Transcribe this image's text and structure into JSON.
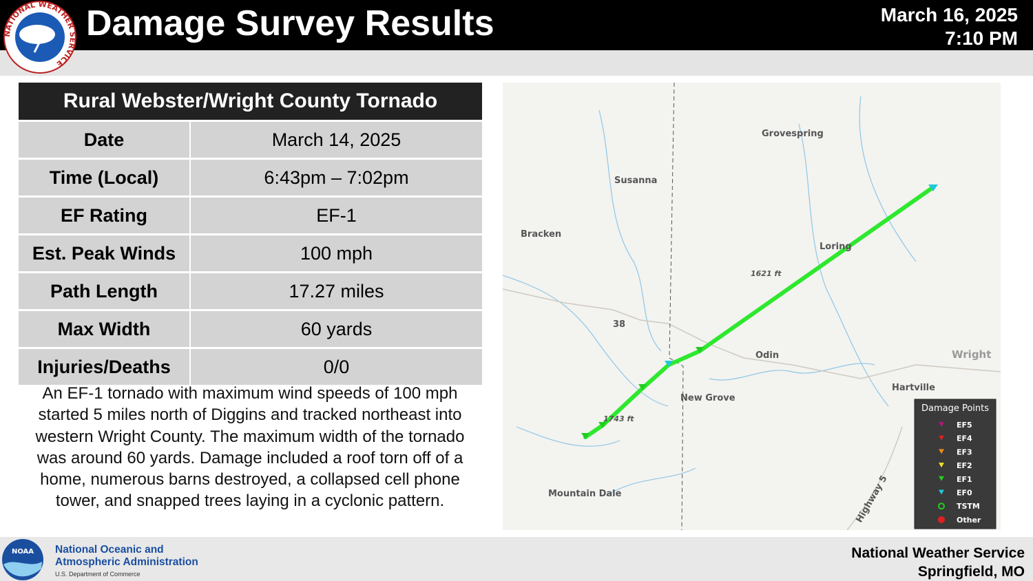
{
  "header": {
    "title": "Damage Survey Results",
    "date": "March 16, 2025",
    "time": "7:10 PM",
    "logo_text": "NATIONAL WEATHER SERVICE"
  },
  "table": {
    "title": "Rural Webster/Wright County Tornado",
    "rows": [
      [
        "Date",
        "March 14, 2025"
      ],
      [
        "Time (Local)",
        "6:43pm – 7:02pm"
      ],
      [
        "EF Rating",
        "EF-1"
      ],
      [
        "Est. Peak Winds",
        "100 mph"
      ],
      [
        "Path Length",
        "17.27 miles"
      ],
      [
        "Max Width",
        "60 yards"
      ],
      [
        "Injuries/Deaths",
        "0/0"
      ]
    ]
  },
  "description": "An EF-1 tornado with maximum wind speeds of 100 mph started 5 miles north of Diggins and tracked northeast into western Wright County. The maximum width of the tornado was around 60 yards. Damage included a roof torn off of a home, numerous barns destroyed, a collapsed cell phone tower, and snapped trees laying in a cyclonic pattern.",
  "map": {
    "places": [
      "Grovespring",
      "Susanna",
      "Bracken",
      "Loring",
      "1621 ft",
      "38",
      "Odin",
      "Wright",
      "Hartville",
      "New Grove",
      "1743 ft",
      "Mountain Dale",
      "Highway 5"
    ],
    "legend": {
      "title": "Damage Points",
      "items": [
        {
          "label": "EF5",
          "color": "#b0177a"
        },
        {
          "label": "EF4",
          "color": "#e02020"
        },
        {
          "label": "EF3",
          "color": "#f08a10"
        },
        {
          "label": "EF2",
          "color": "#f0e020"
        },
        {
          "label": "EF1",
          "color": "#22cc22"
        },
        {
          "label": "EF0",
          "color": "#20c8d8"
        },
        {
          "label": "TSTM",
          "color": "#22cc22"
        },
        {
          "label": "Other",
          "color": "#e02020"
        }
      ]
    }
  },
  "footer": {
    "noaa_logo": "NOAA",
    "noaa_line1": "National Oceanic and",
    "noaa_line2": "Atmospheric Administration",
    "noaa_line3": "U.S. Department of Commerce",
    "office_line1": "National Weather Service",
    "office_line2": "Springfield, MO"
  }
}
